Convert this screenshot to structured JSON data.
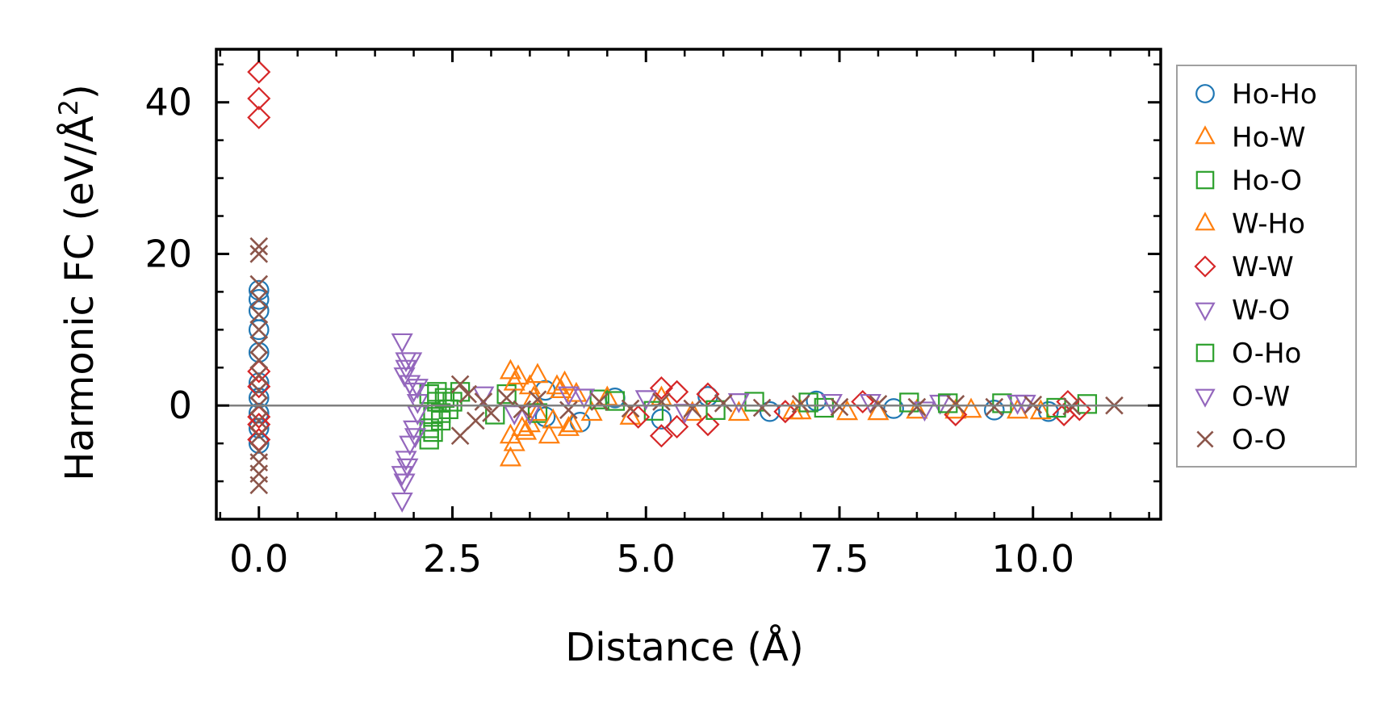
{
  "chart_data": {
    "type": "scatter",
    "xlabel": "Distance (Å)",
    "ylabel": "Harmonic FC (eV/Å",
    "ylabel_sup": "2",
    "ylabel_close": ")",
    "xlim": [
      -0.55,
      11.65
    ],
    "ylim": [
      -15,
      47
    ],
    "x_ticks": [
      0.0,
      2.5,
      5.0,
      7.5,
      10.0
    ],
    "x_tick_labels": [
      "0.0",
      "2.5",
      "5.0",
      "7.5",
      "10.0"
    ],
    "y_ticks": [
      0,
      20,
      40
    ],
    "y_tick_labels": [
      "0",
      "20",
      "40"
    ],
    "x_minor_step": 0.5,
    "y_minor_step": 5,
    "zero_line": true,
    "grid": false,
    "legend_position": "outside-right",
    "series": [
      {
        "name": "Ho-Ho",
        "marker": "circle",
        "color": "#1f77b4",
        "points": [
          [
            0,
            15.2
          ],
          [
            0,
            14
          ],
          [
            0,
            12.5
          ],
          [
            0,
            10
          ],
          [
            0,
            7
          ],
          [
            0,
            3
          ],
          [
            0,
            1
          ],
          [
            0,
            -1
          ],
          [
            0,
            -3
          ],
          [
            0,
            -5
          ],
          [
            3.7,
            2
          ],
          [
            3.7,
            -1.5
          ],
          [
            4.15,
            -2.2
          ],
          [
            4.6,
            1
          ],
          [
            5.2,
            -1.8
          ],
          [
            5.8,
            1.2
          ],
          [
            6.6,
            -0.8
          ],
          [
            7.2,
            0.6
          ],
          [
            8.2,
            -0.4
          ],
          [
            9.5,
            -0.6
          ],
          [
            10.2,
            -0.8
          ]
        ]
      },
      {
        "name": "Ho-W",
        "marker": "triangle-up",
        "color": "#ff7f0e",
        "points": [
          [
            3.25,
            -7
          ],
          [
            3.25,
            -4
          ],
          [
            3.25,
            4.5
          ],
          [
            3.35,
            3.8
          ],
          [
            3.4,
            -3
          ],
          [
            3.5,
            2.5
          ],
          [
            3.5,
            -2.5
          ],
          [
            3.55,
            1
          ],
          [
            3.6,
            -1
          ],
          [
            3.75,
            -4
          ],
          [
            3.85,
            2.5
          ],
          [
            3.95,
            3
          ],
          [
            4.0,
            -3
          ],
          [
            4.1,
            1.5
          ],
          [
            4.3,
            -1
          ],
          [
            4.8,
            -1.5
          ],
          [
            5.2,
            1
          ],
          [
            6.2,
            -1
          ],
          [
            6.9,
            -0.8
          ],
          [
            7.6,
            -0.9
          ],
          [
            8.5,
            -0.7
          ],
          [
            9.2,
            -0.6
          ],
          [
            9.8,
            -0.7
          ]
        ]
      },
      {
        "name": "Ho-O",
        "marker": "square",
        "color": "#2ca02c",
        "points": [
          [
            2.2,
            -4.5
          ],
          [
            2.2,
            -3
          ],
          [
            2.2,
            1.5
          ],
          [
            2.25,
            -1.5
          ],
          [
            2.3,
            0.5
          ],
          [
            2.35,
            -2
          ],
          [
            2.4,
            1
          ],
          [
            2.45,
            -0.5
          ],
          [
            2.6,
            1.8
          ],
          [
            3.2,
            1.5
          ],
          [
            3.6,
            -1
          ],
          [
            4.4,
            0.8
          ],
          [
            5.1,
            -0.7
          ],
          [
            6.4,
            0.5
          ],
          [
            7.3,
            -0.3
          ],
          [
            8.4,
            0.4
          ],
          [
            9.6,
            0.3
          ],
          [
            10.7,
            0.2
          ]
        ]
      },
      {
        "name": "W-Ho",
        "marker": "triangle-up",
        "color": "#ff7f0e",
        "points": [
          [
            3.3,
            -5
          ],
          [
            3.3,
            3
          ],
          [
            3.45,
            -3.5
          ],
          [
            3.6,
            4
          ],
          [
            3.8,
            -2
          ],
          [
            3.9,
            2
          ],
          [
            4.05,
            -2.5
          ],
          [
            4.5,
            1
          ],
          [
            5.6,
            -1
          ],
          [
            7.0,
            -0.8
          ],
          [
            8.0,
            -0.9
          ],
          [
            9.0,
            -0.7
          ],
          [
            10.1,
            -0.8
          ]
        ]
      },
      {
        "name": "W-W",
        "marker": "diamond",
        "color": "#d62728",
        "points": [
          [
            0,
            44
          ],
          [
            0,
            40.5
          ],
          [
            0,
            38
          ],
          [
            0,
            4.5
          ],
          [
            0,
            2.5
          ],
          [
            0,
            -1.5
          ],
          [
            0,
            -2.5
          ],
          [
            0,
            -4.5
          ],
          [
            4.9,
            -1.5
          ],
          [
            5.2,
            2.3
          ],
          [
            5.2,
            -4
          ],
          [
            5.4,
            1.8
          ],
          [
            5.4,
            -2.8
          ],
          [
            5.8,
            1.5
          ],
          [
            5.8,
            -2.5
          ],
          [
            6.8,
            -0.8
          ],
          [
            7.8,
            0.5
          ],
          [
            9.0,
            -1.2
          ],
          [
            10.4,
            -1.2
          ],
          [
            10.45,
            0.5
          ],
          [
            10.6,
            -0.5
          ]
        ]
      },
      {
        "name": "W-O",
        "marker": "triangle-down",
        "color": "#9467bd",
        "points": [
          [
            1.85,
            -12.5
          ],
          [
            1.85,
            8.5
          ],
          [
            1.85,
            -9
          ],
          [
            1.9,
            -7
          ],
          [
            1.9,
            6
          ],
          [
            1.9,
            5
          ],
          [
            1.95,
            -5
          ],
          [
            1.95,
            3
          ],
          [
            2.0,
            -3
          ],
          [
            2.0,
            2
          ],
          [
            2.05,
            -1
          ],
          [
            2.05,
            0.5
          ],
          [
            2.9,
            1.5
          ],
          [
            3.5,
            -1
          ],
          [
            4.0,
            1.5
          ],
          [
            5.0,
            1
          ],
          [
            6.2,
            0.6
          ],
          [
            7.9,
            0.5
          ],
          [
            8.8,
            0.4
          ],
          [
            9.8,
            0.4
          ]
        ]
      },
      {
        "name": "O-Ho",
        "marker": "square",
        "color": "#2ca02c",
        "points": [
          [
            2.25,
            -3.5
          ],
          [
            2.3,
            1.8
          ],
          [
            2.35,
            -1
          ],
          [
            2.5,
            0.5
          ],
          [
            3.05,
            -1.2
          ],
          [
            4.6,
            0.6
          ],
          [
            5.9,
            -0.6
          ],
          [
            7.1,
            0.4
          ],
          [
            8.9,
            0.3
          ],
          [
            10.3,
            -0.3
          ]
        ]
      },
      {
        "name": "O-W",
        "marker": "triangle-down",
        "color": "#9467bd",
        "points": [
          [
            1.88,
            -10
          ],
          [
            1.88,
            4
          ],
          [
            1.92,
            -8
          ],
          [
            1.97,
            6
          ],
          [
            2.02,
            -4
          ],
          [
            2.05,
            2.5
          ],
          [
            3.3,
            -1
          ],
          [
            4.2,
            1.2
          ],
          [
            5.5,
            -0.8
          ],
          [
            7.4,
            0.5
          ],
          [
            8.6,
            -0.5
          ],
          [
            9.9,
            0.4
          ]
        ]
      },
      {
        "name": "O-O",
        "marker": "x",
        "color": "#8c564b",
        "points": [
          [
            0,
            21
          ],
          [
            0,
            20
          ],
          [
            0,
            16
          ],
          [
            0,
            14
          ],
          [
            0,
            12
          ],
          [
            0,
            10
          ],
          [
            0,
            8
          ],
          [
            0,
            6
          ],
          [
            0,
            4
          ],
          [
            0,
            2
          ],
          [
            0,
            0
          ],
          [
            0,
            -2
          ],
          [
            0,
            -4
          ],
          [
            0,
            -6
          ],
          [
            0,
            -7.5
          ],
          [
            0,
            -9
          ],
          [
            0,
            -10.5
          ],
          [
            2.6,
            2.8
          ],
          [
            2.6,
            -4
          ],
          [
            2.7,
            1.5
          ],
          [
            2.8,
            -2
          ],
          [
            2.9,
            0.5
          ],
          [
            3.0,
            -1
          ],
          [
            3.2,
            1
          ],
          [
            3.4,
            -0.5
          ],
          [
            3.6,
            0.8
          ],
          [
            4.0,
            -0.6
          ],
          [
            4.4,
            0.5
          ],
          [
            4.8,
            -0.4
          ],
          [
            5.2,
            0.5
          ],
          [
            5.6,
            -0.4
          ],
          [
            6.0,
            0.3
          ],
          [
            6.5,
            -0.3
          ],
          [
            7.0,
            0.2
          ],
          [
            7.5,
            -0.2
          ],
          [
            8.0,
            0.2
          ],
          [
            8.5,
            -0.2
          ],
          [
            9.0,
            0.2
          ],
          [
            9.5,
            -0.2
          ],
          [
            10.0,
            0.1
          ],
          [
            10.5,
            -0.1
          ],
          [
            11.05,
            0
          ]
        ]
      }
    ]
  }
}
